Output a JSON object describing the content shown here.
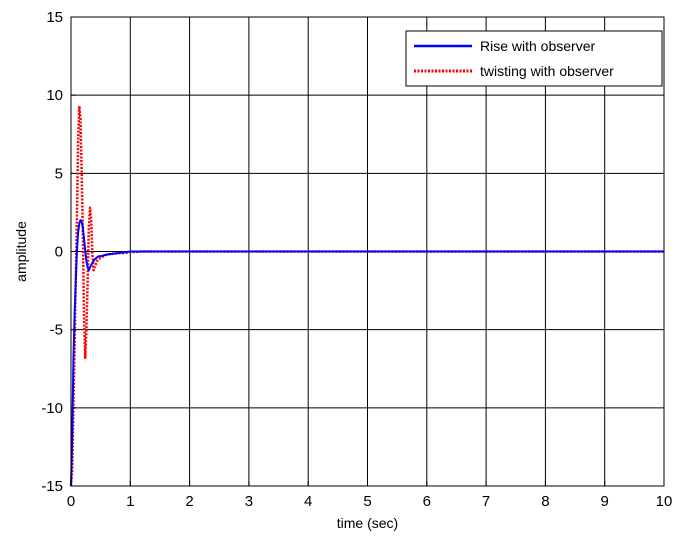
{
  "chart_data": {
    "type": "line",
    "title": "",
    "xlabel": "time (sec)",
    "ylabel": "amplitude",
    "xlim": [
      0,
      10
    ],
    "ylim": [
      -15,
      15
    ],
    "xticks": [
      "0",
      "1",
      "2",
      "3",
      "4",
      "5",
      "6",
      "7",
      "8",
      "9",
      "10"
    ],
    "yticks": [
      "-15",
      "-10",
      "-5",
      "0",
      "5",
      "10",
      "15"
    ],
    "grid": true,
    "legend_position": "top-right",
    "series": [
      {
        "name": "Rise with observer",
        "color": "#0000ff",
        "style": "solid",
        "x": [
          0,
          0.02,
          0.04,
          0.06,
          0.08,
          0.1,
          0.12,
          0.14,
          0.16,
          0.18,
          0.2,
          0.22,
          0.24,
          0.26,
          0.28,
          0.3,
          0.32,
          0.35,
          0.38,
          0.4,
          0.43,
          0.46,
          0.5,
          0.55,
          0.6,
          0.7,
          0.8,
          0.9,
          1.0,
          1.2,
          1.5,
          2,
          3,
          4,
          5,
          6,
          7,
          8,
          9,
          10
        ],
        "y": [
          -15,
          -12,
          -7,
          -4,
          -2,
          0,
          1.2,
          1.8,
          2.0,
          1.9,
          1.5,
          0.8,
          0.1,
          -0.6,
          -1.0,
          -1.2,
          -1.0,
          -0.8,
          -0.6,
          -0.5,
          -0.4,
          -0.3,
          -0.3,
          -0.25,
          -0.2,
          -0.15,
          -0.1,
          -0.05,
          0,
          0,
          0,
          0,
          0,
          0,
          0,
          0,
          0,
          0,
          0,
          0
        ]
      },
      {
        "name": "twisting with observer",
        "color": "#ff0000",
        "style": "dotted",
        "x": [
          0,
          0.02,
          0.04,
          0.06,
          0.08,
          0.1,
          0.12,
          0.14,
          0.16,
          0.18,
          0.2,
          0.22,
          0.24,
          0.26,
          0.28,
          0.3,
          0.32,
          0.34,
          0.36,
          0.38,
          0.4,
          0.42,
          0.44,
          0.46,
          0.5,
          0.55,
          0.6,
          0.7,
          0.8,
          0.9,
          1.0,
          1.2,
          1.5,
          2,
          3,
          4,
          5,
          6,
          7,
          8,
          9,
          10
        ],
        "y": [
          -15,
          -14,
          -10,
          -6,
          -2,
          2,
          7,
          9.3,
          8.5,
          5,
          1,
          -4,
          -6.8,
          -5,
          -2,
          1.5,
          2.8,
          2,
          0,
          -1.2,
          -1.0,
          -0.8,
          -0.6,
          -0.5,
          -0.4,
          -0.3,
          -0.2,
          -0.15,
          -0.1,
          -0.1,
          -0.05,
          0,
          0,
          0,
          0,
          0,
          0,
          0,
          0,
          0,
          0,
          0
        ]
      }
    ]
  }
}
